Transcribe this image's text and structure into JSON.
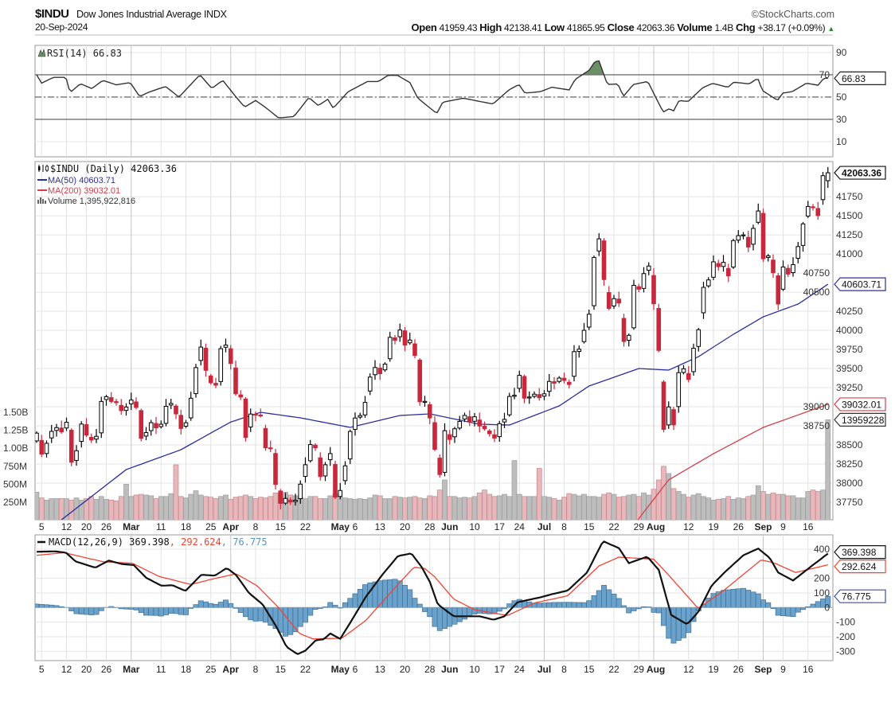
{
  "header": {
    "symbol": "$INDU",
    "name": "Dow Jones Industrial Average",
    "exchange": "INDX",
    "watermark": "©StockCharts.com",
    "date": "20-Sep-2024",
    "quote": {
      "open_label": "Open",
      "open": "41959.43",
      "high_label": "High",
      "high": "42138.41",
      "low_label": "Low",
      "low": "41865.95",
      "close_label": "Close",
      "close": "42063.36",
      "volume_label": "Volume",
      "volume": "1.4B",
      "chg_label": "Chg",
      "chg": "+38.17 (+0.09%)",
      "chg_icon": "triangle-up-icon"
    }
  },
  "colors": {
    "up": "#000000",
    "down": "#c8283c",
    "ma50": "#2b2f9c",
    "ma200": "#d2404e",
    "volume_up": "#bdbdbd",
    "volume_down": "#e6b7bb",
    "rsi_fill": "#6b8f66",
    "macd": "#111111",
    "signal": "#ee4433",
    "histogram": "#6aa2cc"
  },
  "x_axis": {
    "ticks": [
      {
        "i": 1,
        "label": "5"
      },
      {
        "i": 6,
        "label": "12"
      },
      {
        "i": 10,
        "label": "20"
      },
      {
        "i": 14,
        "label": "26"
      },
      {
        "i": 19,
        "label": "Mar",
        "month": true
      },
      {
        "i": 25,
        "label": "11"
      },
      {
        "i": 30,
        "label": "18"
      },
      {
        "i": 35,
        "label": "25"
      },
      {
        "i": 39,
        "label": "Apr",
        "month": true
      },
      {
        "i": 44,
        "label": "8"
      },
      {
        "i": 49,
        "label": "15"
      },
      {
        "i": 54,
        "label": "22"
      },
      {
        "i": 61,
        "label": "May",
        "month": true
      },
      {
        "i": 64,
        "label": "6"
      },
      {
        "i": 69,
        "label": "13"
      },
      {
        "i": 74,
        "label": "20"
      },
      {
        "i": 79,
        "label": "28"
      },
      {
        "i": 83,
        "label": "Jun",
        "month": true
      },
      {
        "i": 88,
        "label": "10"
      },
      {
        "i": 93,
        "label": "17"
      },
      {
        "i": 97,
        "label": "24"
      },
      {
        "i": 102,
        "label": "Jul",
        "month": true
      },
      {
        "i": 106,
        "label": "8"
      },
      {
        "i": 111,
        "label": "15"
      },
      {
        "i": 116,
        "label": "22"
      },
      {
        "i": 121,
        "label": "29"
      },
      {
        "i": 124,
        "label": "Aug",
        "month": true
      },
      {
        "i": 131,
        "label": "12"
      },
      {
        "i": 136,
        "label": "19"
      },
      {
        "i": 141,
        "label": "26"
      },
      {
        "i": 146,
        "label": "Sep",
        "month": true
      },
      {
        "i": 150,
        "label": "9"
      },
      {
        "i": 155,
        "label": "16"
      }
    ]
  },
  "chart_data": [
    {
      "id": "rsi",
      "type": "line",
      "legend": "RSI(14) 66.83",
      "value_label": "66.83",
      "ylim": [
        -3.6,
        96.4
      ],
      "yticks": [
        90,
        70,
        50,
        30,
        10
      ],
      "overbought": 70,
      "oversold": 30,
      "mid": 50,
      "points": [
        [
          0,
          70
        ],
        [
          1,
          62.5
        ],
        [
          3.4,
          67.7
        ],
        [
          5.9,
          67.7
        ],
        [
          6.7,
          54
        ],
        [
          8.8,
          62
        ],
        [
          11.1,
          57.6
        ],
        [
          13.3,
          65
        ],
        [
          16,
          61
        ],
        [
          18.8,
          63
        ],
        [
          20.7,
          50.5
        ],
        [
          22.6,
          54.5
        ],
        [
          25.9,
          59.5
        ],
        [
          28.6,
          50
        ],
        [
          32.8,
          70
        ],
        [
          35.2,
          57.8
        ],
        [
          37.4,
          65
        ],
        [
          39.9,
          51
        ],
        [
          41.8,
          41
        ],
        [
          44,
          47
        ],
        [
          46.2,
          40
        ],
        [
          48.6,
          31.3
        ],
        [
          51.7,
          32.5
        ],
        [
          54.7,
          49.6
        ],
        [
          56.6,
          42.4
        ],
        [
          58.5,
          48
        ],
        [
          59.6,
          40
        ],
        [
          62.6,
          54.8
        ],
        [
          66.5,
          64
        ],
        [
          68.7,
          64
        ],
        [
          70.6,
          69.5
        ],
        [
          72.5,
          69.5
        ],
        [
          75,
          63
        ],
        [
          76.6,
          49
        ],
        [
          80.4,
          35.3
        ],
        [
          81.6,
          45.4
        ],
        [
          83.5,
          47
        ],
        [
          85.7,
          49
        ],
        [
          91.7,
          43.8
        ],
        [
          94.9,
          56.4
        ],
        [
          96.9,
          61.3
        ],
        [
          98.1,
          53.6
        ],
        [
          101.2,
          54.8
        ],
        [
          103.5,
          58.8
        ],
        [
          107,
          56.4
        ],
        [
          108.2,
          65.8
        ],
        [
          111,
          74
        ],
        [
          112.2,
          82
        ],
        [
          113,
          82.4
        ],
        [
          114.7,
          61.3
        ],
        [
          116.8,
          61.8
        ],
        [
          117.9,
          50.6
        ],
        [
          119.9,
          61.3
        ],
        [
          122.8,
          64
        ],
        [
          125.9,
          36.5
        ],
        [
          127.1,
          39.5
        ],
        [
          128,
          37.7
        ],
        [
          129.1,
          47
        ],
        [
          130.9,
          46
        ],
        [
          133.8,
          58.3
        ],
        [
          135.8,
          62.3
        ],
        [
          138.9,
          58.8
        ],
        [
          140.1,
          63.4
        ],
        [
          143.2,
          61.8
        ],
        [
          144.9,
          67
        ],
        [
          145.8,
          56
        ],
        [
          148.9,
          47
        ],
        [
          149.9,
          53.6
        ],
        [
          151.8,
          54.8
        ],
        [
          154.7,
          62.5
        ],
        [
          157,
          60.6
        ],
        [
          158.2,
          67
        ],
        [
          159,
          66.83
        ]
      ]
    },
    {
      "id": "price",
      "type": "bar",
      "style": "candlestick",
      "legend": {
        "price": "$INDU (Daily) 42063.36",
        "ma50": "MA(50) 40603.71",
        "ma200": "MA(200) 39032.01",
        "volume": "Volume 1,395,922,816"
      },
      "labels": {
        "close": "42063.36",
        "ma50": "40603.71",
        "ma200": "39032.01",
        "volume": "13959228"
      },
      "ylim": [
        37520,
        42210
      ],
      "yticks": [
        41750,
        41500,
        41250,
        41000,
        40750,
        40500,
        40250,
        40000,
        39750,
        39500,
        39250,
        39000,
        38750,
        38500,
        38250,
        38000,
        37750
      ],
      "close": [
        38654,
        38380,
        38521,
        38677,
        38726,
        38671,
        38797,
        38273,
        38424,
        38773,
        38628,
        38564,
        38612,
        39069,
        39131,
        39069,
        39053,
        38949,
        38996,
        39087,
        38990,
        38585,
        38661,
        38791,
        38723,
        38770,
        39005,
        39043,
        38906,
        38715,
        38790,
        39111,
        39512,
        39781,
        39476,
        39314,
        39282,
        39760,
        39807,
        39567,
        39170,
        39127,
        38597,
        38904,
        38892,
        38884,
        38462,
        38459,
        37983,
        37735,
        37799,
        37753,
        37775,
        37986,
        38240,
        38504,
        38461,
        38086,
        38240,
        38386,
        37816,
        37903,
        38226,
        38676,
        38852,
        38884,
        39056,
        39388,
        39513,
        39432,
        39558,
        39908,
        39869,
        40004,
        39807,
        39873,
        39671,
        39065,
        39070,
        38853,
        38442,
        38112,
        38686,
        38571,
        38711,
        38807,
        38886,
        38799,
        38868,
        38747,
        38712,
        38647,
        38589,
        38778,
        38834,
        39134,
        39150,
        39411,
        39112,
        39127,
        39164,
        39118,
        39169,
        39331,
        39308,
        39375,
        39344,
        39291,
        39721,
        39753,
        40000,
        40211,
        40954,
        41198,
        40665,
        40287,
        40415,
        40358,
        39854,
        39935,
        40589,
        40539,
        40743,
        40842,
        40348,
        39737,
        38703,
        38997,
        38763,
        39446,
        39497,
        39357,
        39765,
        40008,
        40563,
        40660,
        40897,
        40834,
        40890,
        40713,
        41175,
        41240,
        41250,
        41091,
        41335,
        41563,
        40937,
        40975,
        40755,
        40345,
        40830,
        40737,
        40861,
        41097,
        41394,
        41622,
        41606,
        41503,
        42025,
        42063.36
      ],
      "ma50": [
        [
          0,
          37300
        ],
        [
          5,
          37520
        ],
        [
          18,
          38177
        ],
        [
          29,
          38437
        ],
        [
          39,
          38800
        ],
        [
          45,
          38927
        ],
        [
          53,
          38854
        ],
        [
          63,
          38729
        ],
        [
          73,
          38885
        ],
        [
          79,
          38906
        ],
        [
          89,
          38771
        ],
        [
          95,
          38760
        ],
        [
          105,
          39010
        ],
        [
          111,
          39271
        ],
        [
          121,
          39500
        ],
        [
          127,
          39479
        ],
        [
          133,
          39656
        ],
        [
          140,
          39948
        ],
        [
          146,
          40177
        ],
        [
          153,
          40344
        ],
        [
          159,
          40603.71
        ]
      ],
      "ma200": [
        [
          100,
          37200
        ],
        [
          120,
          37450
        ],
        [
          127,
          38042
        ],
        [
          136,
          38385
        ],
        [
          146,
          38729
        ],
        [
          159,
          39032.01
        ]
      ],
      "volume_millions": [
        390,
        310,
        280,
        300,
        300,
        300,
        300,
        280,
        310,
        280,
        300,
        330,
        290,
        330,
        290,
        280,
        270,
        330,
        500,
        330,
        350,
        360,
        350,
        340,
        300,
        330,
        330,
        370,
        770,
        330,
        310,
        360,
        410,
        350,
        330,
        320,
        300,
        330,
        350,
        290,
        320,
        330,
        350,
        330,
        300,
        320,
        310,
        330,
        380,
        370,
        390,
        350,
        340,
        320,
        300,
        330,
        330,
        300,
        300,
        340,
        370,
        320,
        310,
        300,
        290,
        300,
        290,
        310,
        350,
        340,
        300,
        300,
        330,
        320,
        310,
        320,
        330,
        310,
        300,
        340,
        330,
        420,
        560,
        330,
        330,
        310,
        320,
        310,
        330,
        380,
        420,
        360,
        330,
        340,
        360,
        330,
        830,
        360,
        330,
        330,
        330,
        720,
        330,
        320,
        300,
        280,
        320,
        370,
        360,
        340,
        360,
        330,
        330,
        320,
        360,
        380,
        360,
        320,
        330,
        350,
        360,
        330,
        380,
        350,
        430,
        560,
        750,
        650,
        440,
        400,
        360,
        320,
        350,
        370,
        330,
        310,
        280,
        290,
        300,
        330,
        290,
        310,
        300,
        330,
        350,
        480,
        400,
        360,
        380,
        360,
        360,
        340,
        340,
        310,
        310,
        400,
        420,
        400,
        420,
        1396
      ],
      "volume_ticks": [
        {
          "v": 1500,
          "label": "1.50B"
        },
        {
          "v": 1250,
          "label": "1.25B"
        },
        {
          "v": 1000,
          "label": "1.00B"
        },
        {
          "v": 750,
          "label": "750M"
        },
        {
          "v": 500,
          "label": "500M"
        },
        {
          "v": 250,
          "label": "250M"
        }
      ]
    },
    {
      "id": "macd",
      "type": "line",
      "legend": {
        "name": "MACD(12,26,9)",
        "macd": "369.398",
        "signal": ", 292.624",
        "hist": ", 76.775"
      },
      "labels": {
        "macd": "369.398",
        "signal": "292.624",
        "hist": "76.775"
      },
      "ylim": [
        -364,
        498
      ],
      "yticks": [
        400,
        200,
        100,
        0,
        -100,
        -200,
        -300
      ],
      "macd": [
        [
          0,
          382
        ],
        [
          3.8,
          385
        ],
        [
          5.9,
          376
        ],
        [
          7.8,
          316
        ],
        [
          11.8,
          273
        ],
        [
          14.5,
          322
        ],
        [
          17.1,
          298
        ],
        [
          19.5,
          291
        ],
        [
          22,
          204
        ],
        [
          25.1,
          149
        ],
        [
          27.3,
          153
        ],
        [
          29.9,
          113
        ],
        [
          33.1,
          225
        ],
        [
          35.8,
          218
        ],
        [
          38.2,
          271
        ],
        [
          40.1,
          222
        ],
        [
          42.7,
          98
        ],
        [
          45.4,
          22
        ],
        [
          48.2,
          -133
        ],
        [
          50.2,
          -269
        ],
        [
          52.4,
          -320
        ],
        [
          54,
          -296
        ],
        [
          56.1,
          -224
        ],
        [
          57.7,
          -218
        ],
        [
          59,
          -178
        ],
        [
          61,
          -215
        ],
        [
          63,
          -105
        ],
        [
          66.2,
          76
        ],
        [
          69.4,
          222
        ],
        [
          72.6,
          353
        ],
        [
          75.3,
          371
        ],
        [
          77.4,
          276
        ],
        [
          79,
          176
        ],
        [
          80.6,
          22
        ],
        [
          83.8,
          -60
        ],
        [
          87,
          -60
        ],
        [
          89,
          -60
        ],
        [
          91.8,
          -84
        ],
        [
          94,
          -60
        ],
        [
          96.6,
          36
        ],
        [
          101.4,
          71
        ],
        [
          103.5,
          91
        ],
        [
          106.7,
          116
        ],
        [
          110.6,
          240
        ],
        [
          113.8,
          455
        ],
        [
          117,
          407
        ],
        [
          119,
          304
        ],
        [
          122.7,
          349
        ],
        [
          125,
          258
        ],
        [
          127.5,
          -51
        ],
        [
          130.7,
          -115
        ],
        [
          132.9,
          -33
        ],
        [
          135.6,
          149
        ],
        [
          138.2,
          240
        ],
        [
          142,
          358
        ],
        [
          145,
          404
        ],
        [
          147.3,
          340
        ],
        [
          149,
          240
        ],
        [
          152,
          185
        ],
        [
          155.4,
          276
        ],
        [
          159,
          369.398
        ]
      ],
      "signal": [
        [
          0,
          358
        ],
        [
          5.6,
          376
        ],
        [
          10,
          340
        ],
        [
          13.5,
          313
        ],
        [
          19.2,
          304
        ],
        [
          24.6,
          213
        ],
        [
          31,
          158
        ],
        [
          35.3,
          195
        ],
        [
          40.1,
          231
        ],
        [
          44.3,
          149
        ],
        [
          48.5,
          4
        ],
        [
          52.8,
          -178
        ],
        [
          55.5,
          -215
        ],
        [
          61.3,
          -211
        ],
        [
          66.2,
          -87
        ],
        [
          72.6,
          158
        ],
        [
          75.8,
          276
        ],
        [
          78,
          267
        ],
        [
          80,
          210
        ],
        [
          83.8,
          58
        ],
        [
          88,
          -15
        ],
        [
          94.6,
          -55
        ],
        [
          100,
          31
        ],
        [
          106.7,
          80
        ],
        [
          113,
          285
        ],
        [
          117,
          345
        ],
        [
          124,
          331
        ],
        [
          127,
          222
        ],
        [
          132.9,
          -5
        ],
        [
          137.6,
          104
        ],
        [
          145.6,
          327
        ],
        [
          148.3,
          304
        ],
        [
          152.5,
          240
        ],
        [
          159,
          292.624
        ]
      ]
    }
  ]
}
